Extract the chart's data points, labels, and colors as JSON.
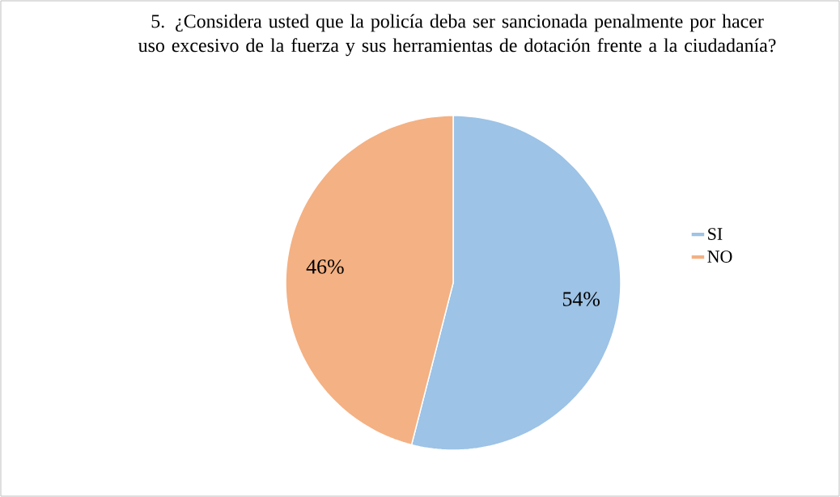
{
  "chart_data": {
    "type": "pie",
    "title": "5. ¿Considera usted que la policía deba ser sancionada penalmente por hacer uso excesivo de la fuerza y sus herramientas de dotación frente a la ciudadanía?",
    "categories": [
      "SI",
      "NO"
    ],
    "values": [
      54,
      46
    ],
    "colors": [
      "#9dc3e6",
      "#f4b183"
    ],
    "value_labels": [
      "54%",
      "46%"
    ],
    "legend": "right"
  }
}
